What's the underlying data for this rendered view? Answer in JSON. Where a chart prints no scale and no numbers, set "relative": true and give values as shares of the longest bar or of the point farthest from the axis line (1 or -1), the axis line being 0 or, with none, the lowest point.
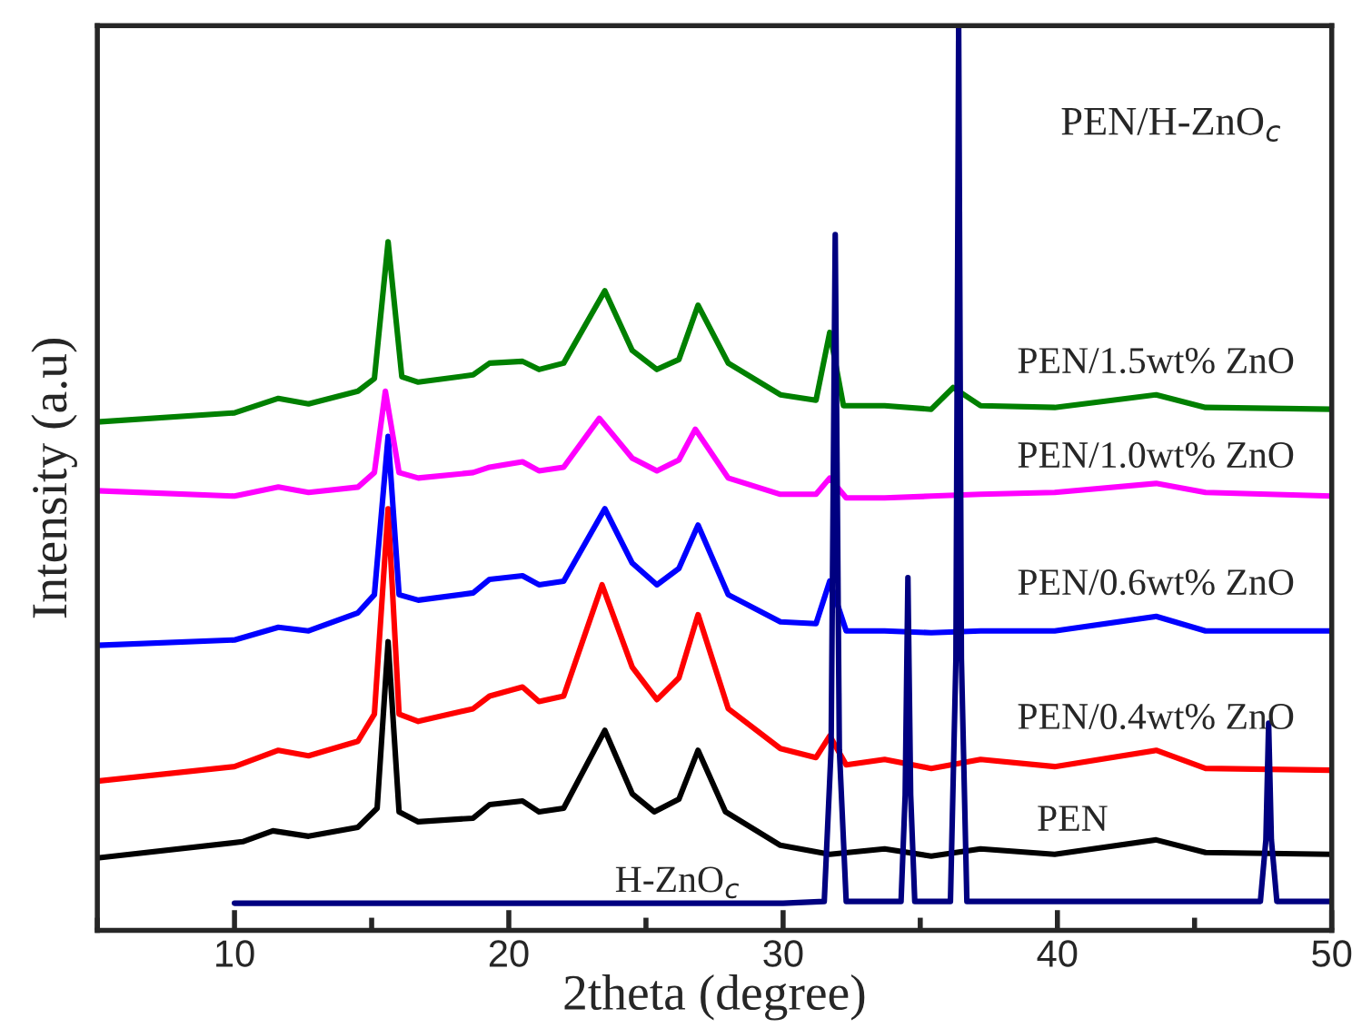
{
  "chart_data": {
    "type": "line",
    "relative": true,
    "xlabel": "2theta (degree)",
    "ylabel": "Intensity (a.u)",
    "xlim": [
      5,
      50
    ],
    "xticks": [
      10,
      20,
      30,
      40,
      50
    ],
    "grid": false,
    "legend": false,
    "marker": "none",
    "line_style": "solid",
    "annotations": [
      "PEN/H-ZnO$_{c}$"
    ],
    "series": [
      {
        "name": "PEN",
        "color": "#000000",
        "x": [
          5,
          10.3,
          11.4,
          12.7,
          14.5,
          15.2,
          15.6,
          16.0,
          16.7,
          18.7,
          19.3,
          20.5,
          21.1,
          22.0,
          23.5,
          24.5,
          25.3,
          26.2,
          26.9,
          27.9,
          29.9,
          31.7,
          33.7,
          35.4,
          37.2,
          39.9,
          43.6,
          45.4,
          50
        ],
        "values": [
          0.08,
          0.098,
          0.11,
          0.104,
          0.114,
          0.135,
          0.319,
          0.131,
          0.12,
          0.124,
          0.139,
          0.143,
          0.131,
          0.135,
          0.221,
          0.151,
          0.131,
          0.145,
          0.199,
          0.131,
          0.094,
          0.084,
          0.09,
          0.082,
          0.09,
          0.084,
          0.1,
          0.086,
          0.084
        ]
      },
      {
        "name": "PEN/0.4wt% ZnO",
        "color": "#ff0000",
        "x": [
          5,
          10,
          11.6,
          12.7,
          14.5,
          15.1,
          15.6,
          16.0,
          16.7,
          18.7,
          19.3,
          20.5,
          21.1,
          22.0,
          23.4,
          24.5,
          25.4,
          26.2,
          26.9,
          28.0,
          29.9,
          31.2,
          31.7,
          32.3,
          33.7,
          35.4,
          37.2,
          39.9,
          43.6,
          45.4,
          50
        ],
        "values": [
          0.165,
          0.181,
          0.199,
          0.193,
          0.209,
          0.239,
          0.466,
          0.239,
          0.231,
          0.245,
          0.259,
          0.269,
          0.253,
          0.259,
          0.382,
          0.291,
          0.255,
          0.279,
          0.349,
          0.245,
          0.201,
          0.191,
          0.215,
          0.183,
          0.189,
          0.179,
          0.189,
          0.181,
          0.199,
          0.179,
          0.177
        ]
      },
      {
        "name": "PEN/0.6wt% ZnO",
        "color": "#0000ff",
        "x": [
          5,
          10,
          11.6,
          12.7,
          14.5,
          15.1,
          15.6,
          16.0,
          16.7,
          18.7,
          19.3,
          20.5,
          21.1,
          22.0,
          23.5,
          24.5,
          25.4,
          26.2,
          26.9,
          28.0,
          29.9,
          31.2,
          31.7,
          32.3,
          33.7,
          35.4,
          37.2,
          39.9,
          43.6,
          45.4,
          50
        ],
        "values": [
          0.315,
          0.321,
          0.335,
          0.331,
          0.351,
          0.371,
          0.546,
          0.371,
          0.365,
          0.373,
          0.388,
          0.392,
          0.382,
          0.386,
          0.466,
          0.406,
          0.382,
          0.4,
          0.448,
          0.371,
          0.341,
          0.339,
          0.386,
          0.331,
          0.331,
          0.329,
          0.331,
          0.331,
          0.347,
          0.331,
          0.331
        ]
      },
      {
        "name": "PEN/1.0wt% ZnO",
        "color": "#ff00ff",
        "x": [
          5,
          10,
          11.6,
          12.7,
          14.5,
          15.1,
          15.5,
          16.0,
          16.7,
          18.7,
          19.3,
          20.5,
          21.1,
          22.0,
          23.3,
          24.5,
          25.4,
          26.2,
          26.8,
          28.0,
          29.9,
          31.2,
          31.7,
          32.3,
          33.7,
          35.4,
          37.2,
          39.9,
          43.6,
          45.4,
          50
        ],
        "values": [
          0.486,
          0.48,
          0.49,
          0.484,
          0.49,
          0.506,
          0.596,
          0.506,
          0.5,
          0.506,
          0.512,
          0.518,
          0.508,
          0.512,
          0.566,
          0.522,
          0.508,
          0.52,
          0.554,
          0.5,
          0.482,
          0.482,
          0.5,
          0.478,
          0.478,
          0.48,
          0.482,
          0.484,
          0.494,
          0.484,
          0.48
        ]
      },
      {
        "name": "PEN/1.5wt% ZnO",
        "color": "#008000",
        "x": [
          5,
          10,
          11.6,
          12.7,
          14.5,
          15.1,
          15.6,
          16.1,
          16.7,
          18.7,
          19.3,
          20.5,
          21.1,
          22.0,
          23.5,
          24.5,
          25.4,
          26.2,
          26.9,
          28.0,
          29.9,
          31.2,
          31.7,
          32.2,
          33.7,
          35.4,
          36.2,
          37.2,
          39.9,
          43.6,
          45.4,
          50
        ],
        "values": [
          0.562,
          0.572,
          0.588,
          0.582,
          0.596,
          0.61,
          0.761,
          0.612,
          0.606,
          0.614,
          0.627,
          0.629,
          0.62,
          0.627,
          0.707,
          0.641,
          0.62,
          0.631,
          0.691,
          0.627,
          0.592,
          0.586,
          0.661,
          0.58,
          0.58,
          0.576,
          0.6,
          0.58,
          0.578,
          0.592,
          0.578,
          0.576
        ]
      },
      {
        "name": "H-ZnO$_{c}$",
        "color": "#000080",
        "x": [
          10,
          15,
          20,
          25,
          30,
          31.5,
          31.75,
          31.9,
          32.05,
          32.3,
          34.3,
          34.45,
          34.55,
          34.65,
          34.8,
          36.1,
          36.3,
          36.4,
          36.5,
          36.7,
          47.4,
          47.6,
          47.7,
          47.8,
          48,
          50
        ],
        "values": [
          0.03,
          0.03,
          0.03,
          0.03,
          0.03,
          0.032,
          0.2,
          0.769,
          0.2,
          0.032,
          0.032,
          0.15,
          0.39,
          0.15,
          0.032,
          0.032,
          0.3,
          1.0,
          0.3,
          0.032,
          0.032,
          0.1,
          0.229,
          0.1,
          0.032,
          0.032
        ]
      }
    ]
  }
}
